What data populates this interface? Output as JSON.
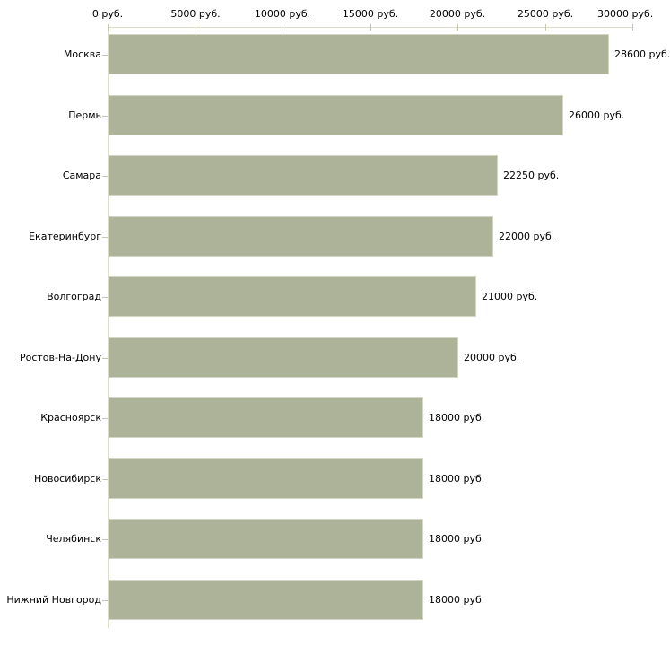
{
  "chart_data": {
    "type": "bar",
    "orientation": "horizontal",
    "title": "",
    "categories": [
      "Москва",
      "Пермь",
      "Самара",
      "Екатеринбург",
      "Волгоград",
      "Ростов-На-Дону",
      "Красноярск",
      "Новосибирск",
      "Челябинск",
      "Нижний Новгород"
    ],
    "values": [
      28600,
      26000,
      22250,
      22000,
      21000,
      20000,
      18000,
      18000,
      18000,
      18000
    ],
    "value_labels": [
      "28600 руб.",
      "26000 руб.",
      "22250 руб.",
      "22000 руб.",
      "21000 руб.",
      "20000 руб.",
      "18000 руб.",
      "18000 руб.",
      "18000 руб.",
      "18000 руб."
    ],
    "xlabel": "",
    "ylabel": "",
    "x_axis": {
      "position": "top",
      "min": 0,
      "max": 30000,
      "unit": "руб.",
      "ticks": [
        0,
        5000,
        10000,
        15000,
        20000,
        25000,
        30000
      ],
      "tick_labels": [
        "0 руб.",
        "5000 руб.",
        "10000 руб.",
        "15000 руб.",
        "20000 руб.",
        "25000 руб.",
        "30000 руб."
      ]
    },
    "legend": "none",
    "grid": "off",
    "colors": {
      "bar_fill": "#adb398",
      "bar_outline": "#d3d6c5",
      "axis_line": "#dcdcc8",
      "tick_mark": "#c6c6ae",
      "text": "#000000",
      "background": "#ffffff"
    }
  }
}
